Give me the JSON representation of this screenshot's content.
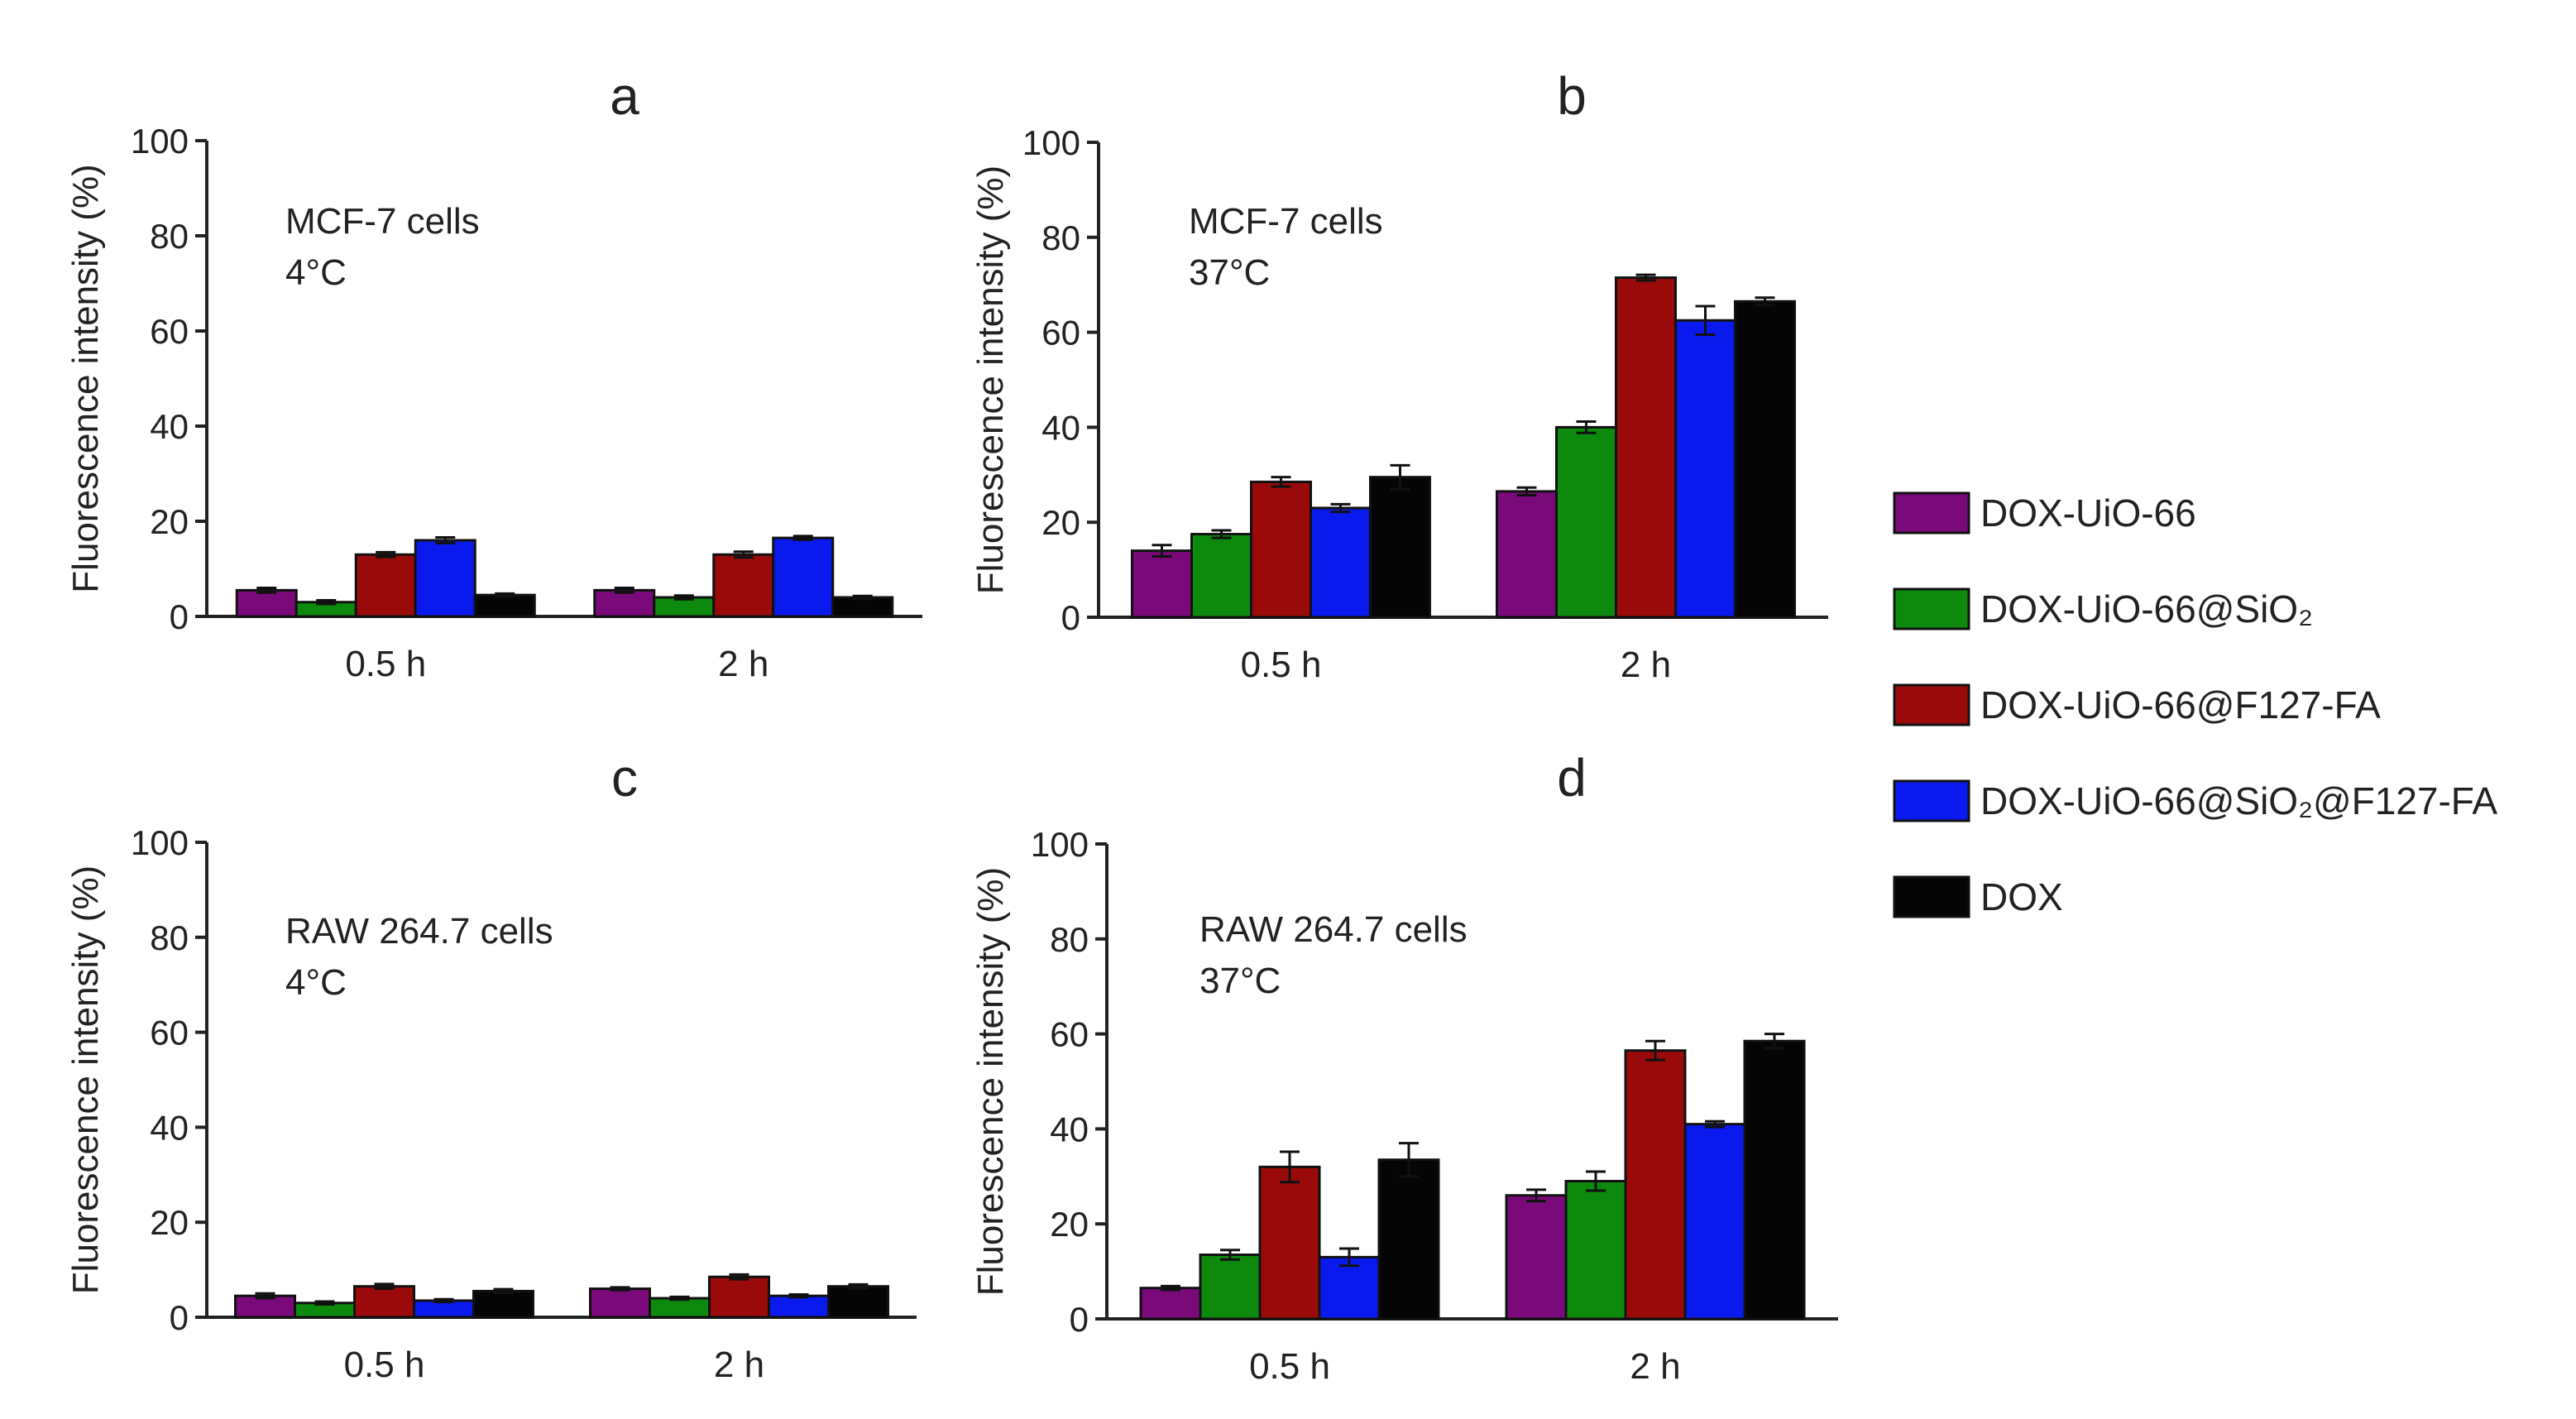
{
  "legend": [
    {
      "label": "DOX-UiO-66",
      "color": "#7a0a7a"
    },
    {
      "label": "DOX-UiO-66@SiO₂",
      "color": "#0d8a0d"
    },
    {
      "label": "DOX-UiO-66@F127-FA",
      "color": "#9a0a0a"
    },
    {
      "label": "DOX-UiO-66@SiO₂@F127-FA",
      "color": "#0a1aee"
    },
    {
      "label": "DOX",
      "color": "#050505"
    }
  ],
  "chart_data": [
    {
      "type": "bar",
      "panel": "a",
      "title": "a",
      "annotation": [
        "MCF-7 cells",
        "4°C"
      ],
      "xlabel": "",
      "ylabel": "Fluorescence intensity (%)",
      "ylim": [
        0,
        100
      ],
      "yticks": [
        "0",
        "20",
        "40",
        "60",
        "80",
        "100"
      ],
      "categories": [
        "0.5 h",
        "2 h"
      ],
      "series": [
        {
          "name": "DOX-UiO-66",
          "values": [
            5.5,
            5.5
          ],
          "errors": [
            0.5,
            0.5
          ]
        },
        {
          "name": "DOX-UiO-66@SiO₂",
          "values": [
            3,
            4
          ],
          "errors": [
            0.4,
            0.4
          ]
        },
        {
          "name": "DOX-UiO-66@F127-FA",
          "values": [
            13,
            13
          ],
          "errors": [
            0.5,
            0.6
          ]
        },
        {
          "name": "DOX-UiO-66@SiO₂@F127-FA",
          "values": [
            16,
            16.5
          ],
          "errors": [
            0.6,
            0.4
          ]
        },
        {
          "name": "DOX",
          "values": [
            4.5,
            4
          ],
          "errors": [
            0.3,
            0.3
          ]
        }
      ]
    },
    {
      "type": "bar",
      "panel": "b",
      "title": "b",
      "annotation": [
        "MCF-7 cells",
        "37°C"
      ],
      "xlabel": "",
      "ylabel": "Fluorescence intensity (%)",
      "ylim": [
        0,
        100
      ],
      "yticks": [
        "0",
        "20",
        "40",
        "60",
        "80",
        "100"
      ],
      "categories": [
        "0.5 h",
        "2 h"
      ],
      "series": [
        {
          "name": "DOX-UiO-66",
          "values": [
            14,
            26.5
          ],
          "errors": [
            1.2,
            0.8
          ]
        },
        {
          "name": "DOX-UiO-66@SiO₂",
          "values": [
            17.5,
            40
          ],
          "errors": [
            0.8,
            1.2
          ]
        },
        {
          "name": "DOX-UiO-66@F127-FA",
          "values": [
            28.5,
            71.5
          ],
          "errors": [
            1.0,
            0.6
          ]
        },
        {
          "name": "DOX-UiO-66@SiO₂@F127-FA",
          "values": [
            23,
            62.5
          ],
          "errors": [
            0.8,
            3.0
          ]
        },
        {
          "name": "DOX",
          "values": [
            29.5,
            66.5
          ],
          "errors": [
            2.5,
            0.8
          ]
        }
      ]
    },
    {
      "type": "bar",
      "panel": "c",
      "title": "c",
      "annotation": [
        "RAW 264.7 cells",
        "4°C"
      ],
      "xlabel": "",
      "ylabel": "Fluorescence intensity (%)",
      "ylim": [
        0,
        100
      ],
      "yticks": [
        "0",
        "20",
        "40",
        "60",
        "80",
        "100"
      ],
      "categories": [
        "0.5 h",
        "2 h"
      ],
      "series": [
        {
          "name": "DOX-UiO-66",
          "values": [
            4.5,
            6
          ],
          "errors": [
            0.5,
            0.3
          ]
        },
        {
          "name": "DOX-UiO-66@SiO₂",
          "values": [
            3,
            4
          ],
          "errors": [
            0.3,
            0.3
          ]
        },
        {
          "name": "DOX-UiO-66@F127-FA",
          "values": [
            6.5,
            8.5
          ],
          "errors": [
            0.5,
            0.5
          ]
        },
        {
          "name": "DOX-UiO-66@SiO₂@F127-FA",
          "values": [
            3.5,
            4.5
          ],
          "errors": [
            0.3,
            0.3
          ]
        },
        {
          "name": "DOX",
          "values": [
            5.5,
            6.5
          ],
          "errors": [
            0.4,
            0.4
          ]
        }
      ]
    },
    {
      "type": "bar",
      "panel": "d",
      "title": "d",
      "annotation": [
        "RAW 264.7 cells",
        "37°C"
      ],
      "xlabel": "",
      "ylabel": "Fluorescence intensity (%)",
      "ylim": [
        0,
        100
      ],
      "yticks": [
        "0",
        "20",
        "40",
        "60",
        "80",
        "100"
      ],
      "categories": [
        "0.5 h",
        "2 h"
      ],
      "series": [
        {
          "name": "DOX-UiO-66",
          "values": [
            6.5,
            26
          ],
          "errors": [
            0.4,
            1.2
          ]
        },
        {
          "name": "DOX-UiO-66@SiO₂",
          "values": [
            13.5,
            29
          ],
          "errors": [
            1.0,
            2.0
          ]
        },
        {
          "name": "DOX-UiO-66@F127-FA",
          "values": [
            32,
            56.5
          ],
          "errors": [
            3.2,
            2.0
          ]
        },
        {
          "name": "DOX-UiO-66@SiO₂@F127-FA",
          "values": [
            13,
            41
          ],
          "errors": [
            1.8,
            0.6
          ]
        },
        {
          "name": "DOX",
          "values": [
            33.5,
            58.5
          ],
          "errors": [
            3.5,
            1.5
          ]
        }
      ]
    }
  ]
}
